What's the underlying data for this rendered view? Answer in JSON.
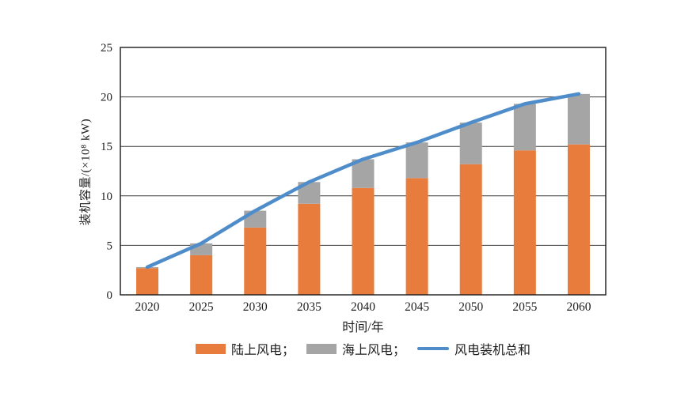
{
  "chart_data": {
    "type": "bar",
    "stacked": true,
    "title": "",
    "categories": [
      "2020",
      "2025",
      "2030",
      "2035",
      "2040",
      "2045",
      "2050",
      "2055",
      "2060"
    ],
    "series": [
      {
        "name": "陆上风电",
        "kind": "bar",
        "color": "#E77C3C",
        "values": [
          2.7,
          4.0,
          6.8,
          9.2,
          10.8,
          11.8,
          13.2,
          14.6,
          15.2
        ]
      },
      {
        "name": "海上风电",
        "kind": "bar",
        "color": "#A5A5A5",
        "values": [
          0.1,
          1.2,
          1.7,
          2.2,
          2.9,
          3.6,
          4.2,
          4.7,
          5.1
        ]
      },
      {
        "name": "风电装机总和",
        "kind": "line",
        "color": "#4F8DCA",
        "values": [
          2.8,
          5.2,
          8.5,
          11.4,
          13.7,
          15.4,
          17.4,
          19.3,
          20.3
        ]
      }
    ],
    "xlabel": "时间/年",
    "ylabel": "装机容量/(×10⁸ kW)",
    "ylim": [
      0,
      25
    ],
    "yticks": [
      0,
      5,
      10,
      15,
      20,
      25
    ],
    "grid": true,
    "legend_position": "bottom",
    "legend_labels": [
      "陆上风电；",
      "海上风电；",
      "风电装机总和"
    ]
  },
  "style": {
    "axis_color": "#1a1a1a",
    "grid_color": "#3c3c3c",
    "text_color": "#1f1f1f",
    "background": "#ffffff"
  }
}
